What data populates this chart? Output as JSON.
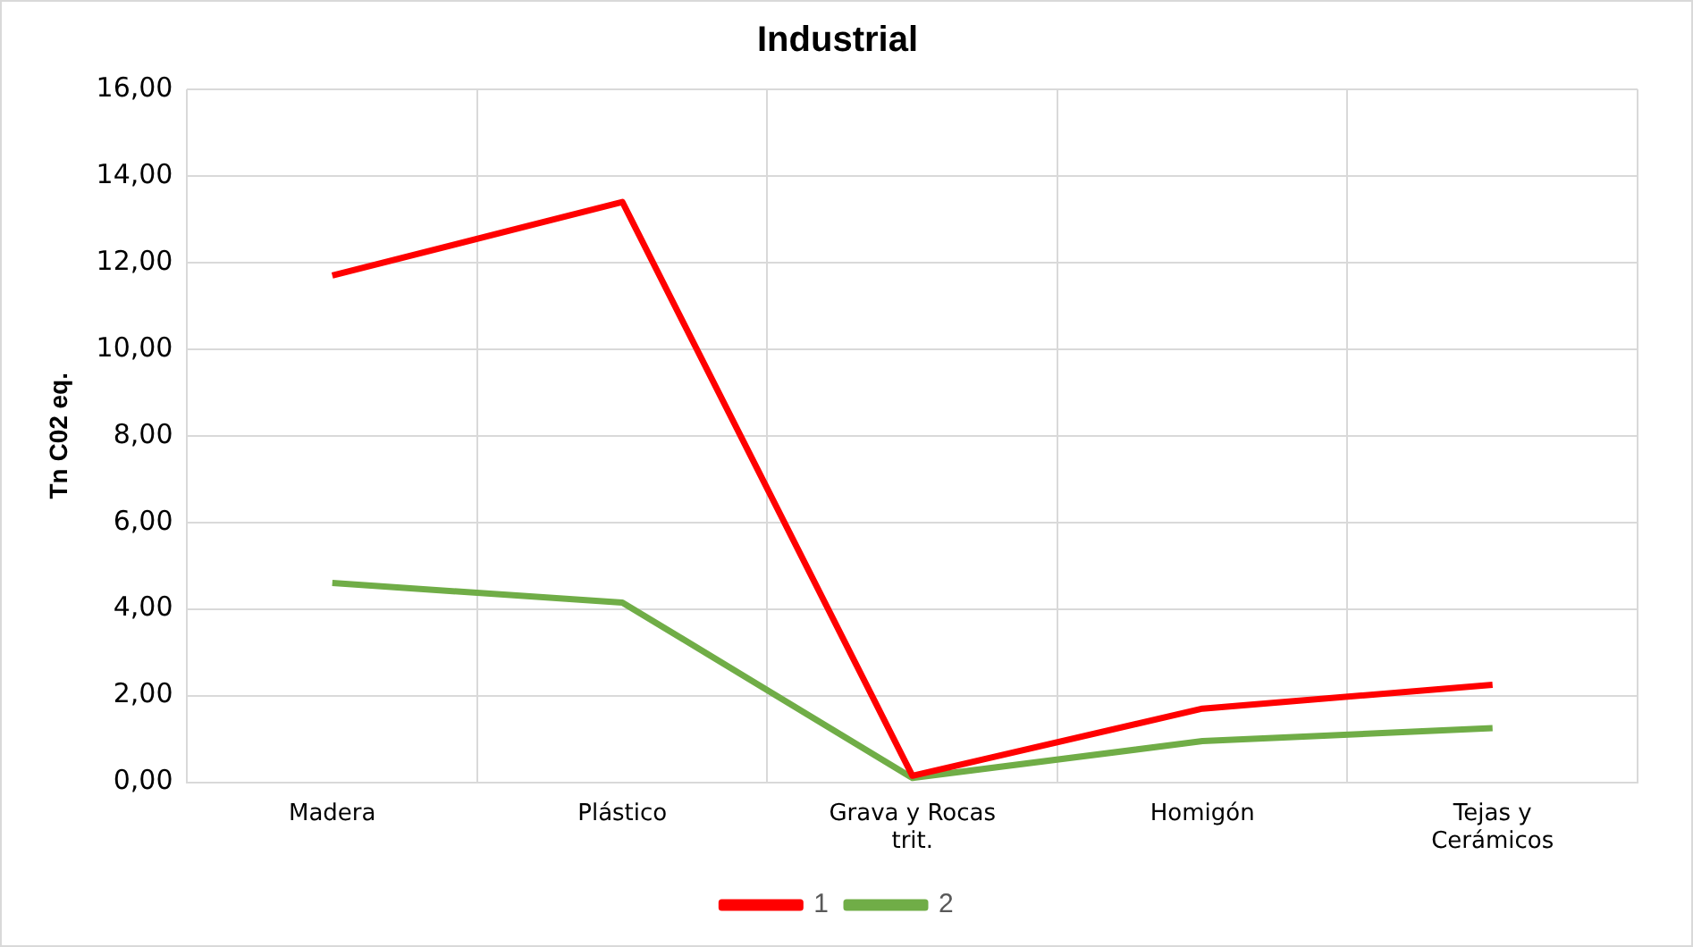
{
  "chart_data": {
    "type": "line",
    "title": "Industrial",
    "ylabel": "Tn C02 eq.",
    "categories": [
      "Madera",
      "Plástico",
      "Grava y Rocas\ntrit.",
      "Homigón",
      "Tejas y\nCerámicos"
    ],
    "series": [
      {
        "name": "1",
        "color": "#ff0000",
        "values": [
          11.7,
          13.4,
          0.15,
          1.7,
          2.25
        ]
      },
      {
        "name": "2",
        "color": "#70ad47",
        "values": [
          4.6,
          4.15,
          0.1,
          0.95,
          1.25
        ]
      }
    ],
    "ylim": [
      0,
      16
    ],
    "yticks": [
      {
        "value": 0,
        "label": "0,00"
      },
      {
        "value": 2,
        "label": "2,00"
      },
      {
        "value": 4,
        "label": "4,00"
      },
      {
        "value": 6,
        "label": "6,00"
      },
      {
        "value": 8,
        "label": "8,00"
      },
      {
        "value": 10,
        "label": "10,00"
      },
      {
        "value": 12,
        "label": "12,00"
      },
      {
        "value": 14,
        "label": "14,00"
      },
      {
        "value": 16,
        "label": "16,00"
      }
    ],
    "grid": true,
    "legend": "bottom",
    "marker": "none",
    "line_style": "solid"
  }
}
